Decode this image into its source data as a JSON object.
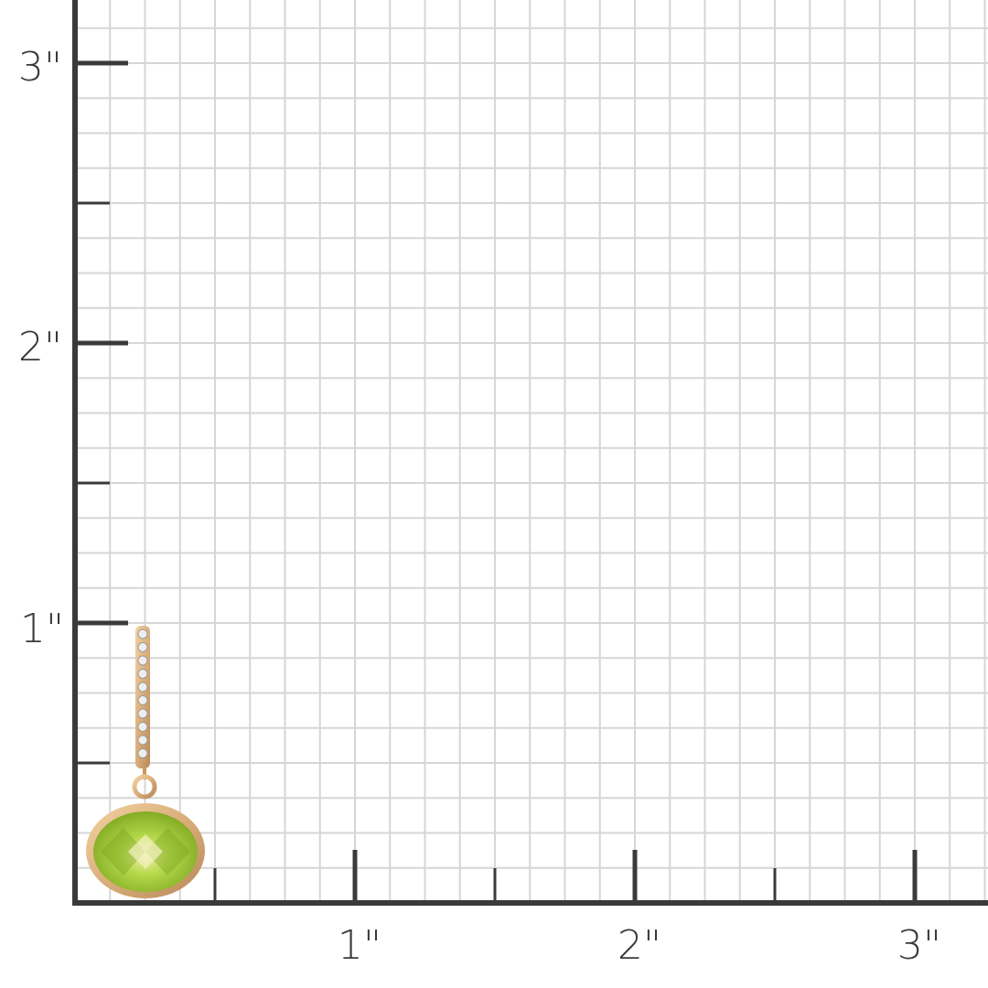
{
  "ruler": {
    "unit_mark": "\"",
    "x_labels": [
      "1\"",
      "2\"",
      "3\""
    ],
    "y_labels": [
      "1\"",
      "2\"",
      "3\""
    ],
    "subdivisions_per_inch": 8
  },
  "product": {
    "type": "drop earring",
    "gem_color": "#9cc43a",
    "metal_color": "#d9ae7a"
  },
  "colors": {
    "axis": "#3a3a3a",
    "grid": "#d6d6d6",
    "background": "#ffffff"
  }
}
